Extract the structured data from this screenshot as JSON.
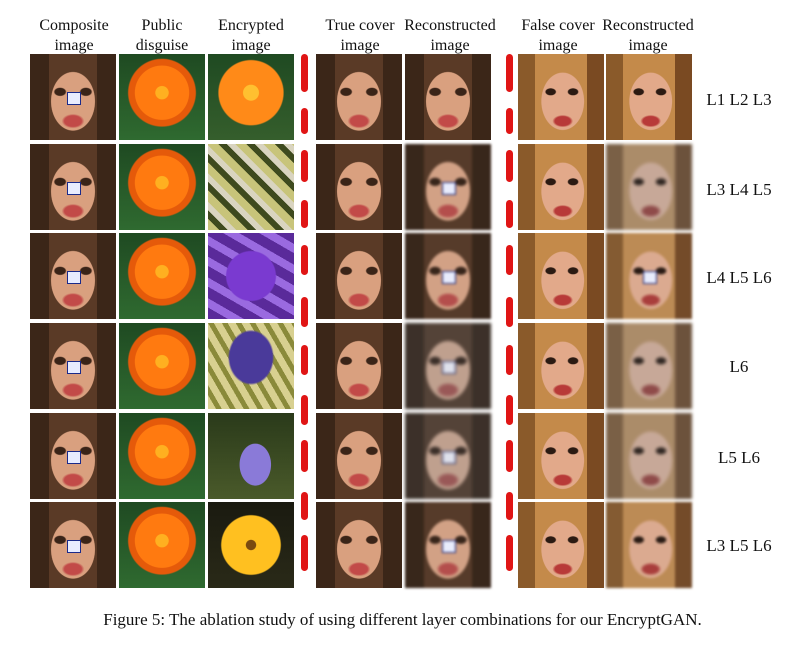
{
  "headers": {
    "composite": "Composite image",
    "public": "Public disguise",
    "encrypted": "Encrypted image",
    "true_cover": "True cover image",
    "reconstructed_1": "Reconstructed image",
    "false_cover": "False cover image",
    "reconstructed_2": "Reconstructed image"
  },
  "header_lines": {
    "composite": [
      "Composite",
      "image"
    ],
    "public": [
      "Public",
      "disguise"
    ],
    "encrypted": [
      "Encrypted",
      "image"
    ],
    "true_cover": [
      "True cover",
      "image"
    ],
    "reconstructed_1": [
      "Reconstructed",
      "image"
    ],
    "false_cover": [
      "False cover",
      "image"
    ],
    "reconstructed_2": [
      "Reconstructed",
      "image"
    ]
  },
  "rows": [
    {
      "label": "L1 L2 L3"
    },
    {
      "label": "L3 L4 L5"
    },
    {
      "label": "L4 L5 L6"
    },
    {
      "label": "L6"
    },
    {
      "label": "L5 L6"
    },
    {
      "label": "L3 L5 L6"
    }
  ],
  "caption": "Figure 5: The ablation study of using different layer combinations for our EncryptGAN.",
  "colors": {
    "separator": "#e01515"
  }
}
